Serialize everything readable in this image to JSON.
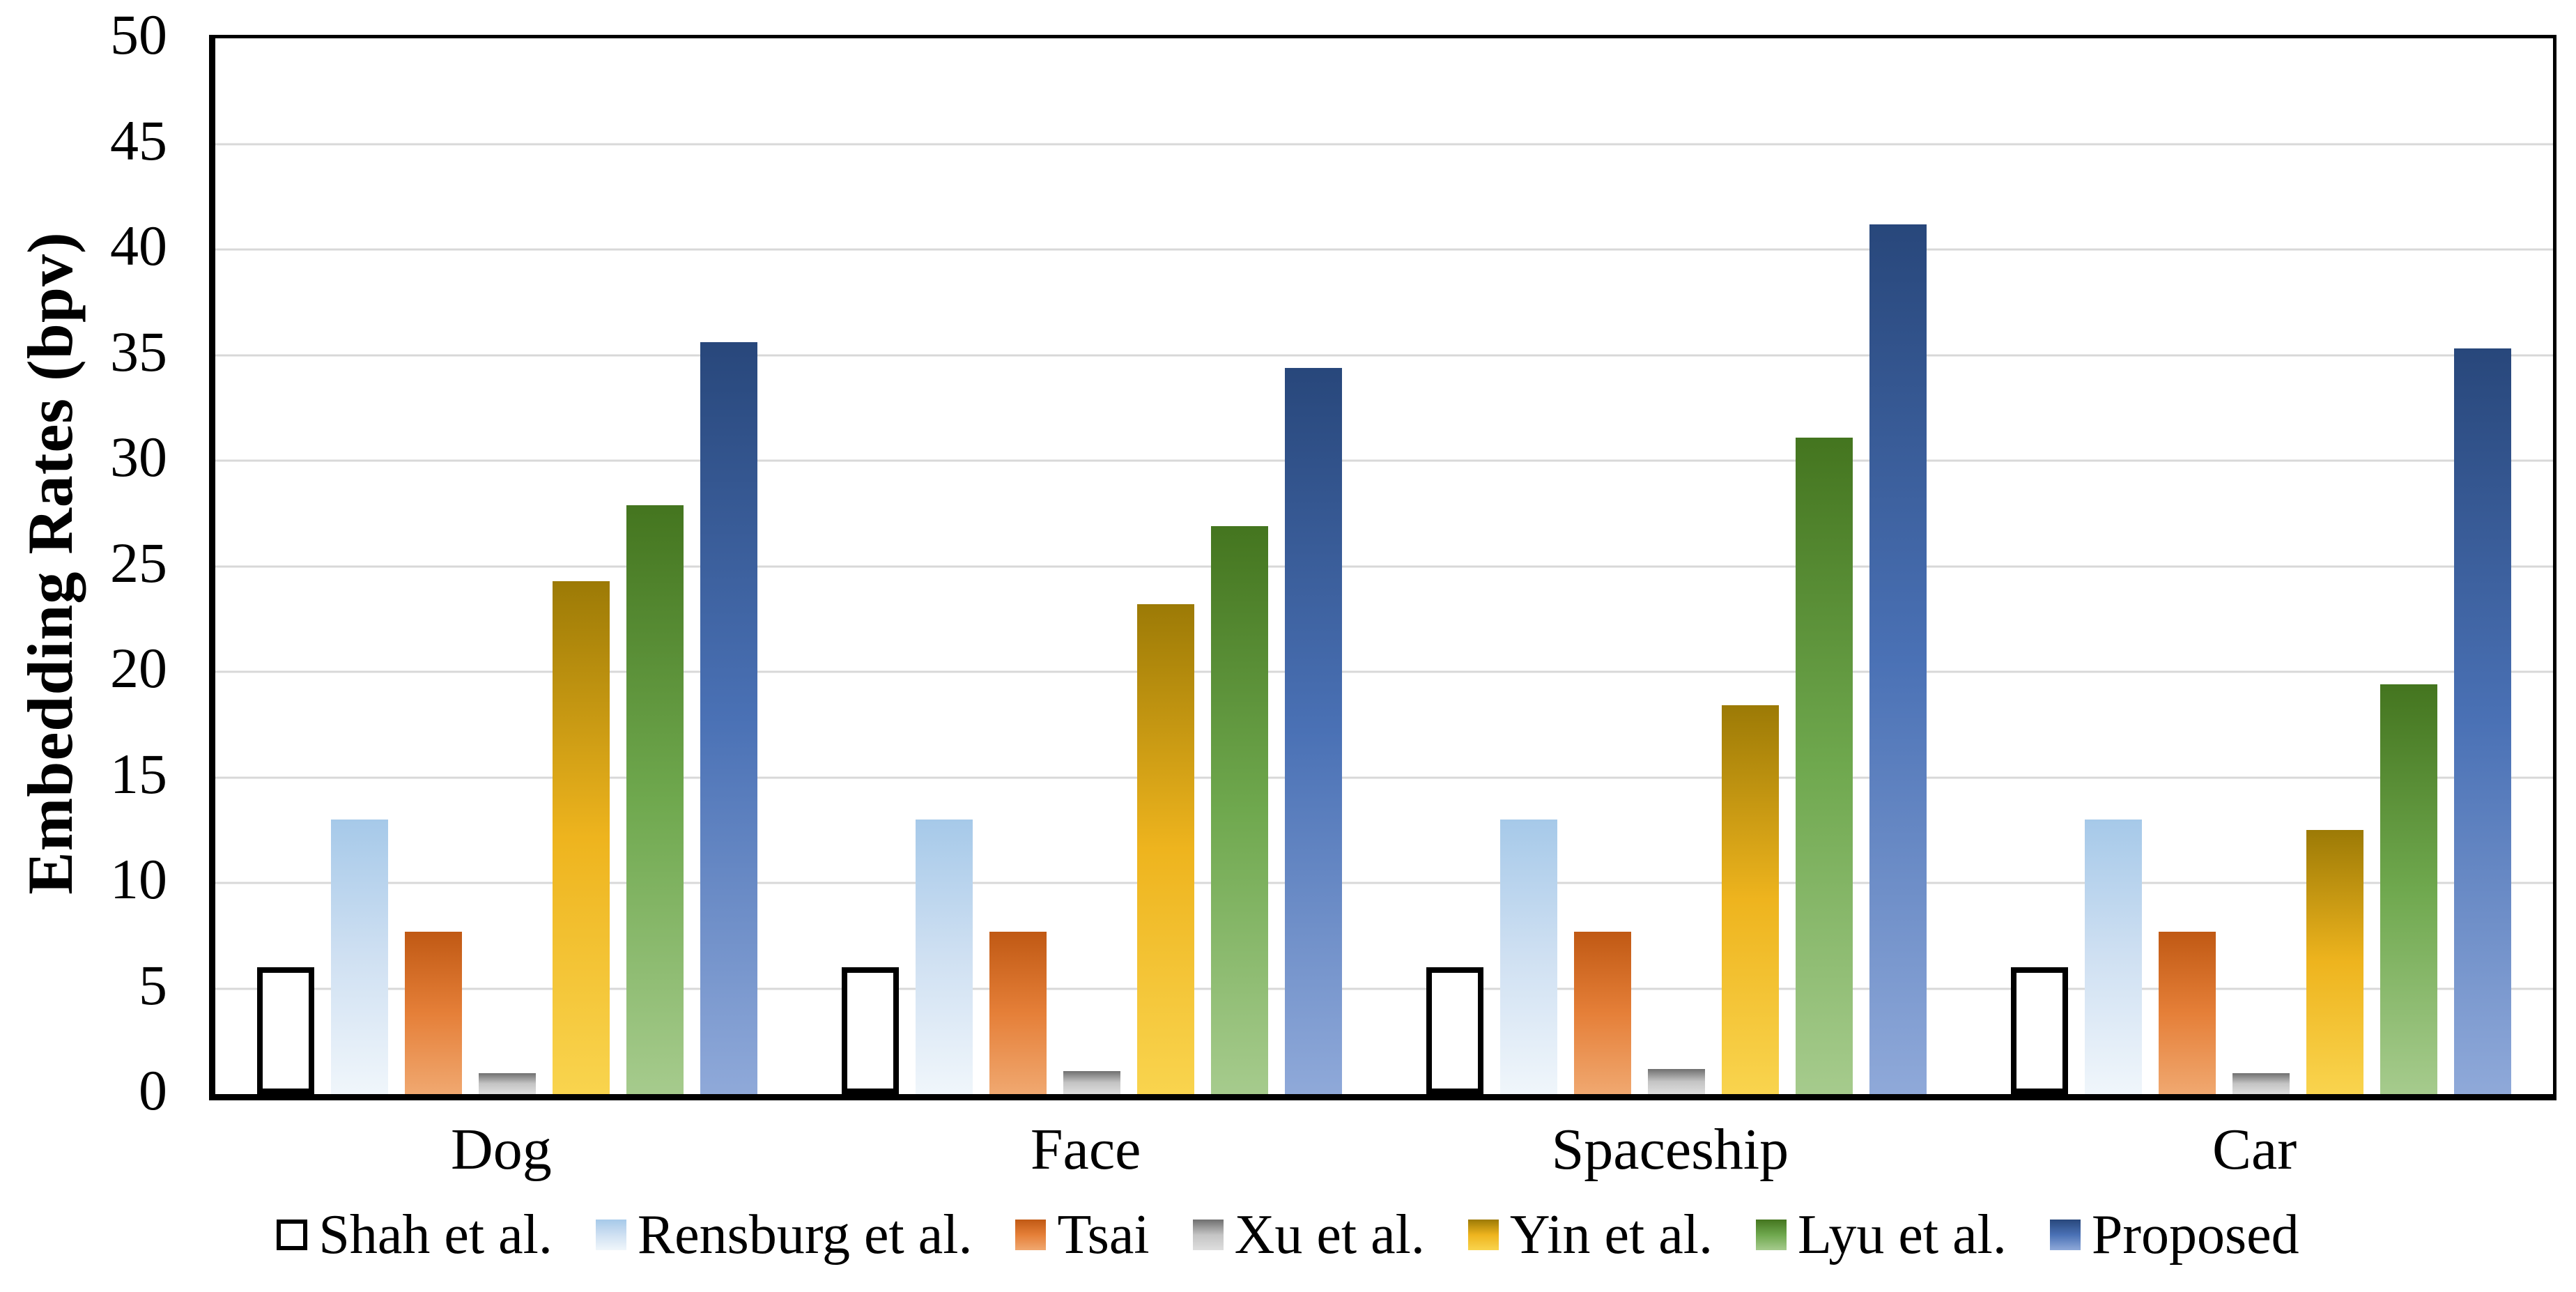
{
  "chart_data": {
    "type": "bar",
    "title": "",
    "xlabel": "",
    "ylabel": "Embedding Rates (bpv)",
    "ylim": [
      0,
      50
    ],
    "yticks": [
      0,
      5,
      10,
      15,
      20,
      25,
      30,
      35,
      40,
      45,
      50
    ],
    "grid": true,
    "gridline_color": "#d8d8d8",
    "axis_color": "#000000",
    "legend_position": "bottom",
    "categories": [
      "Dog",
      "Face",
      "Spaceship",
      "Car"
    ],
    "series": [
      {
        "name": "Shah et al.",
        "values": [
          6.0,
          6.0,
          6.0,
          6.0
        ],
        "fill": "outline",
        "color_top": "#ffffff",
        "color_mid": "#ffffff",
        "color_bottom": "#ffffff",
        "border_color": "#000000"
      },
      {
        "name": "Rensburg et al.",
        "values": [
          13.0,
          13.0,
          13.0,
          13.0
        ],
        "fill": "gradient",
        "color_top": "#a6c9e9",
        "color_mid": "#cfe0f2",
        "color_bottom": "#f0f6fb"
      },
      {
        "name": "Tsai",
        "values": [
          7.7,
          7.7,
          7.7,
          7.7
        ],
        "fill": "gradient",
        "color_top": "#c05914",
        "color_mid": "#e57f38",
        "color_bottom": "#f0a870"
      },
      {
        "name": "Xu et al.",
        "values": [
          1.0,
          1.1,
          1.2,
          1.0
        ],
        "fill": "gradient",
        "color_top": "#6f6f6f",
        "color_mid": "#c4c4c4",
        "color_bottom": "#dedede"
      },
      {
        "name": "Yin et al.",
        "values": [
          24.3,
          23.2,
          18.4,
          12.5
        ],
        "fill": "gradient",
        "color_top": "#9c7a06",
        "color_mid": "#eeb41e",
        "color_bottom": "#f9d44e"
      },
      {
        "name": "Lyu et al.",
        "values": [
          27.9,
          26.9,
          31.1,
          19.4
        ],
        "fill": "gradient",
        "color_top": "#44751f",
        "color_mid": "#6fa84e",
        "color_bottom": "#a6cb8d"
      },
      {
        "name": "Proposed",
        "values": [
          35.6,
          34.4,
          41.2,
          35.3
        ],
        "fill": "gradient",
        "color_top": "#28477b",
        "color_mid": "#4a71b5",
        "color_bottom": "#8fa9d9"
      }
    ]
  }
}
